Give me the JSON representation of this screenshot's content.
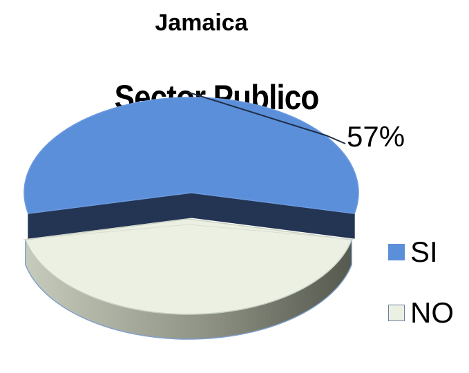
{
  "page_title": "Jamaica",
  "colors": {
    "si_top": "#5B8FD9",
    "si_side": "#243553",
    "no_top": "#EBF0E3",
    "no_side": "#A7AB9C",
    "edge": "#4E6E9E",
    "leader": "#1F2F4A"
  },
  "chart_data": {
    "type": "pie",
    "style": "3d-exploded",
    "title": "Sector Publico",
    "categories": [
      "SI",
      "NO"
    ],
    "values": [
      57,
      43
    ],
    "data_labels": [
      "57%",
      ""
    ],
    "legend": {
      "position": "right",
      "entries": [
        "SI",
        "NO"
      ]
    }
  }
}
